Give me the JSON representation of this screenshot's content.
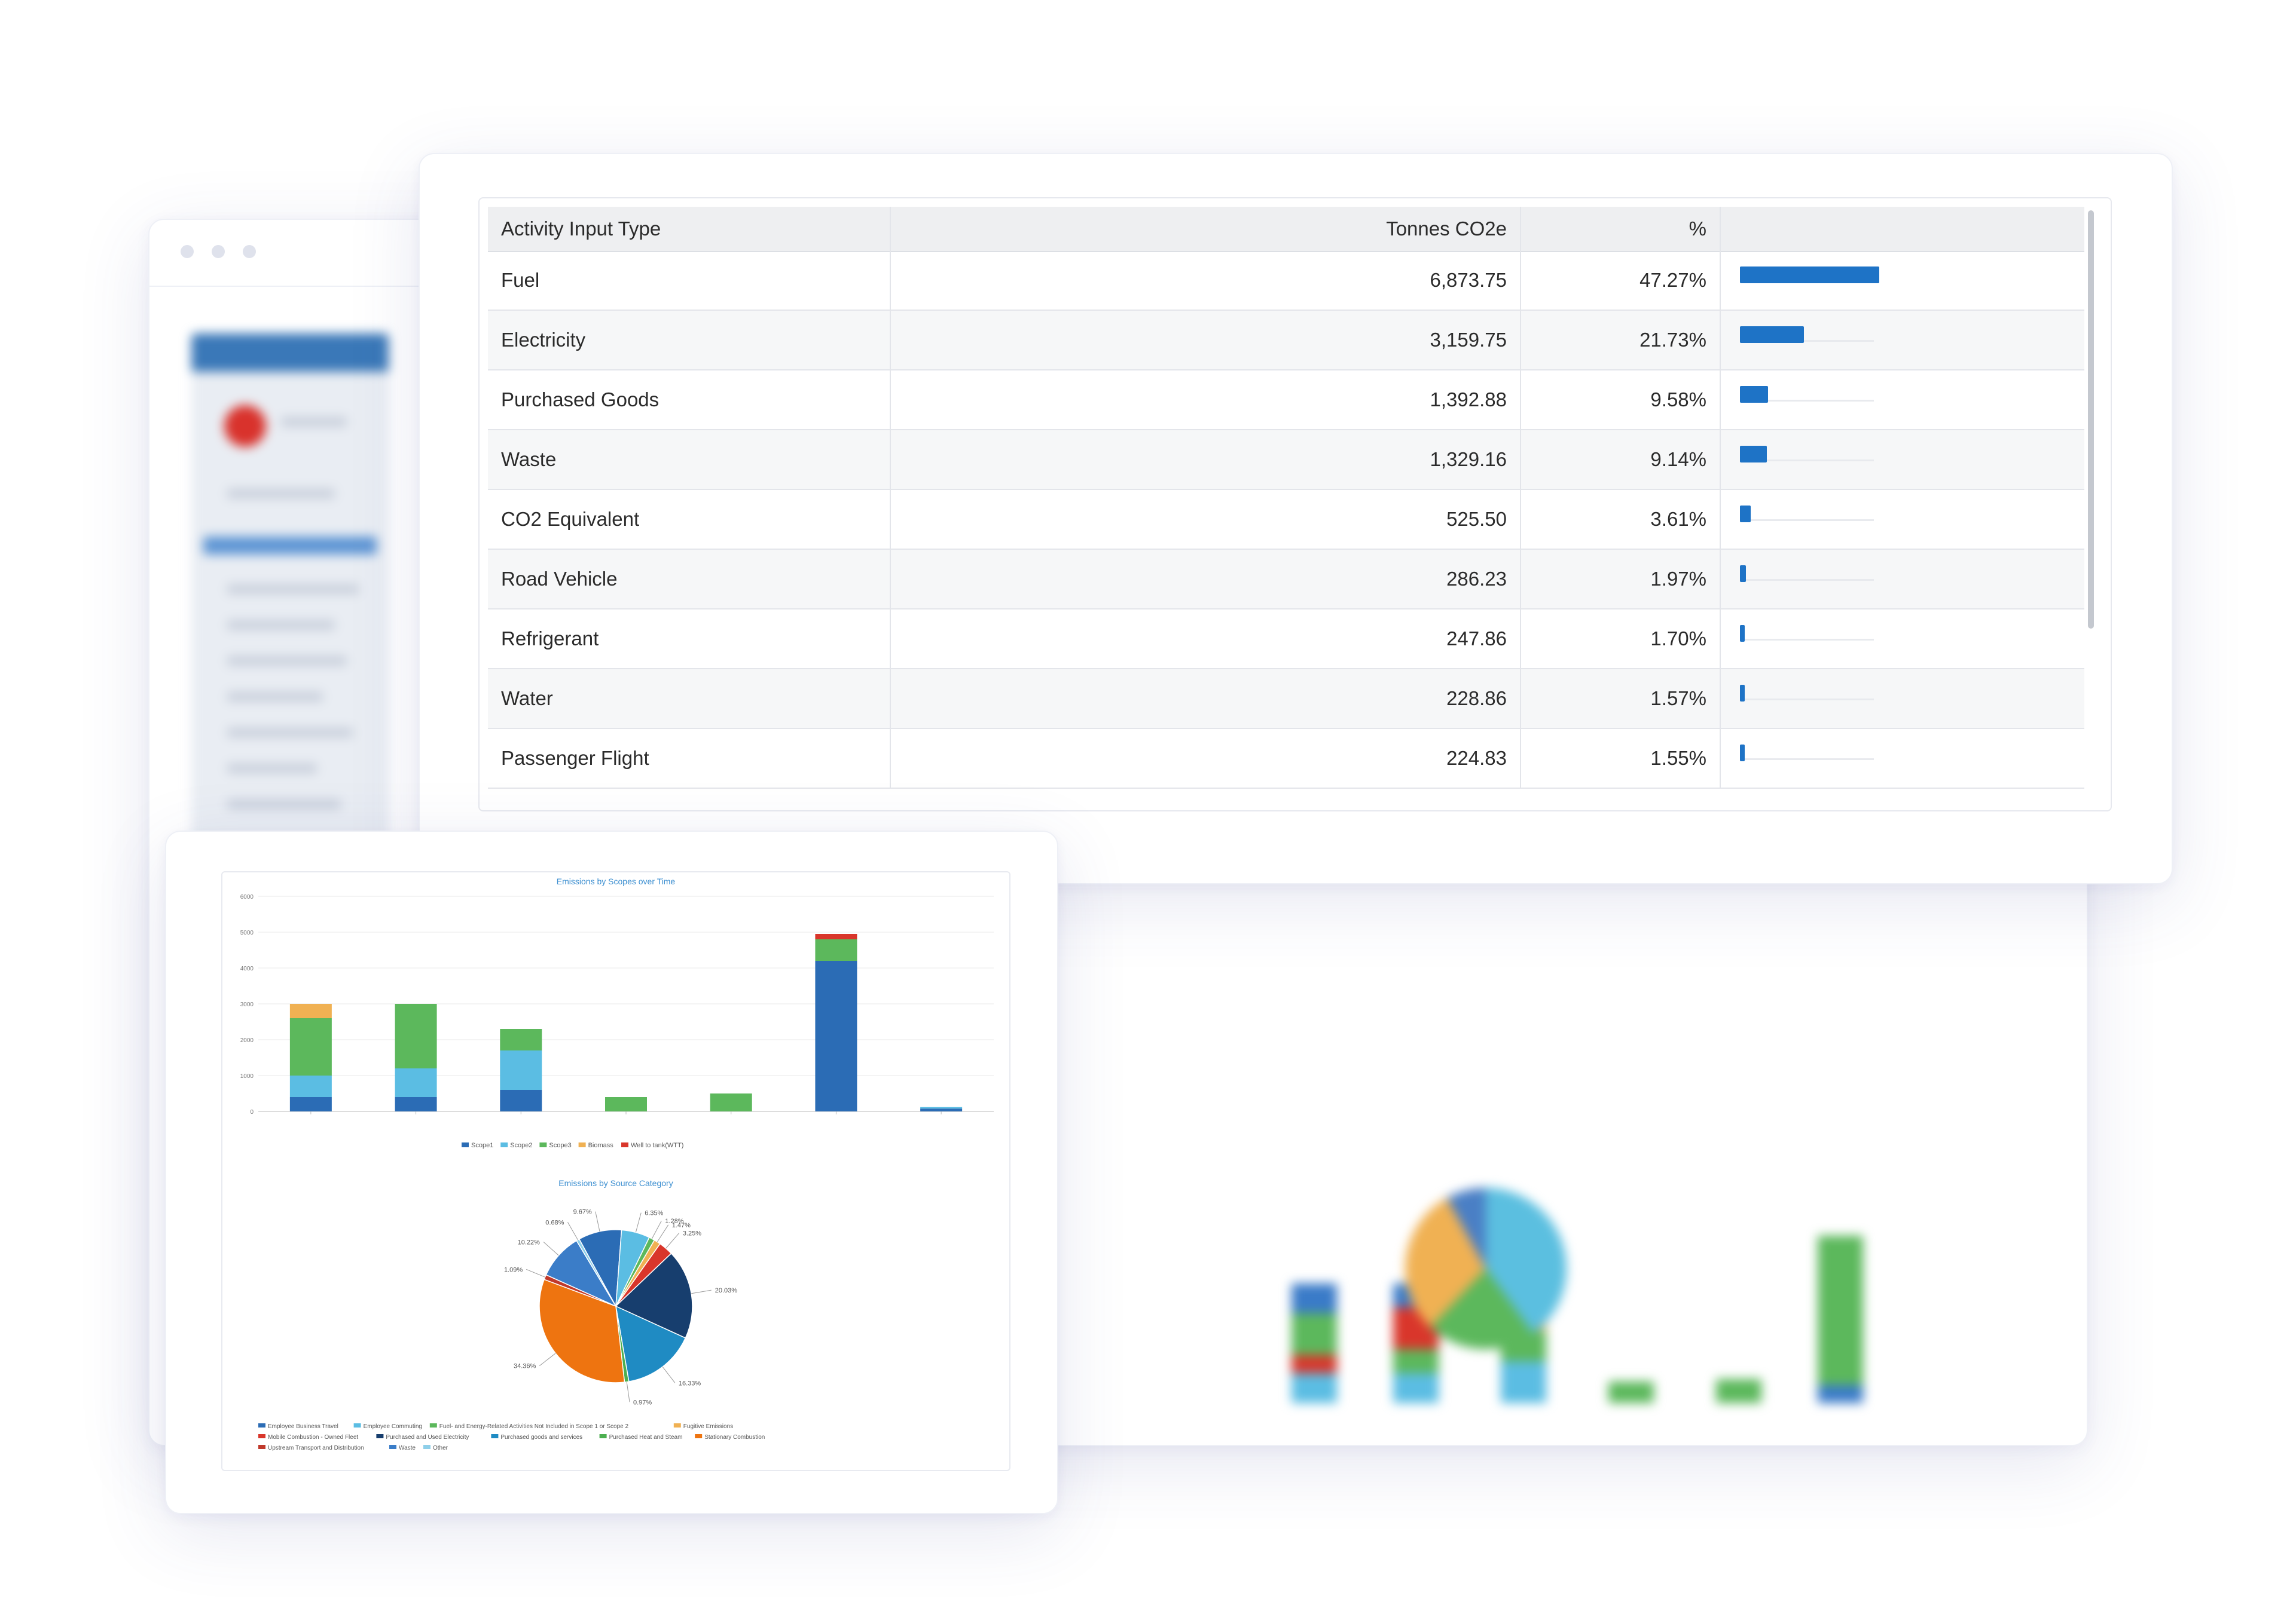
{
  "table": {
    "headers": {
      "type": "Activity Input Type",
      "tonnes": "Tonnes CO2e",
      "percent": "%"
    },
    "rows": [
      {
        "type": "Fuel",
        "tonnes": "6,873.75",
        "percent": "47.27%",
        "share": 0.4727
      },
      {
        "type": "Electricity",
        "tonnes": "3,159.75",
        "percent": "21.73%",
        "share": 0.2173
      },
      {
        "type": "Purchased Goods",
        "tonnes": "1,392.88",
        "percent": "9.58%",
        "share": 0.0958
      },
      {
        "type": "Waste",
        "tonnes": "1,329.16",
        "percent": "9.14%",
        "share": 0.0914
      },
      {
        "type": "CO2 Equivalent",
        "tonnes": "525.50",
        "percent": "3.61%",
        "share": 0.0361
      },
      {
        "type": "Road Vehicle",
        "tonnes": "286.23",
        "percent": "1.97%",
        "share": 0.0197
      },
      {
        "type": "Refrigerant",
        "tonnes": "247.86",
        "percent": "1.70%",
        "share": 0.017
      },
      {
        "type": "Water",
        "tonnes": "228.86",
        "percent": "1.57%",
        "share": 0.0157
      },
      {
        "type": "Passenger Flight",
        "tonnes": "224.83",
        "percent": "1.55%",
        "share": 0.0155
      }
    ],
    "bar_color": "#1e73c6"
  },
  "chart_data": [
    {
      "type": "bar",
      "stacked": true,
      "title": "Emissions by Scopes over Time",
      "categories": [
        "",
        "",
        "",
        "",
        "",
        "",
        ""
      ],
      "ylim": [
        0,
        6000
      ],
      "yticks": [
        "0",
        "1000",
        "2000",
        "3000",
        "4000",
        "5000",
        "6000"
      ],
      "series": [
        {
          "name": "Scope1",
          "color": "#2b6cb5",
          "values": [
            400,
            400,
            600,
            0,
            0,
            4200,
            80
          ]
        },
        {
          "name": "Scope2",
          "color": "#5bbde3",
          "values": [
            600,
            800,
            1100,
            0,
            0,
            0,
            40
          ]
        },
        {
          "name": "Scope3",
          "color": "#5cb85c",
          "values": [
            1600,
            1800,
            600,
            400,
            500,
            600,
            0
          ]
        },
        {
          "name": "Biomass",
          "color": "#f0b153",
          "values": [
            400,
            0,
            0,
            0,
            0,
            0,
            0
          ]
        },
        {
          "name": "Well to tank(WTT)",
          "color": "#d9362b",
          "values": [
            0,
            0,
            0,
            0,
            0,
            150,
            0
          ]
        }
      ]
    },
    {
      "type": "pie",
      "title": "Emissions by Source Category",
      "slice_labels": [
        "9.67%",
        "6.35%",
        "1.28%",
        "1.47%",
        "3.25%",
        "20.03%",
        "16.33%",
        "0.97%",
        "34.36%",
        "1.09%",
        "10.22%",
        "0.68%"
      ],
      "series": [
        {
          "name": "Employee Business Travel",
          "color": "#2b6cb5",
          "value": 9.67
        },
        {
          "name": "Employee Commuting",
          "color": "#5bbde3",
          "value": 6.35
        },
        {
          "name": "Fuel- and Energy-Related Activities Not Included in Scope 1 or Scope 2",
          "color": "#5cb85c",
          "value": 1.28
        },
        {
          "name": "Fugitive Emissions",
          "color": "#f0b153",
          "value": 1.47
        },
        {
          "name": "Mobile Combustion - Owned Fleet",
          "color": "#d9362b",
          "value": 3.25
        },
        {
          "name": "Purchased and Used Electricity",
          "color": "#173e6e",
          "value": 20.03
        },
        {
          "name": "Purchased goods and services",
          "color": "#1f8bc3",
          "value": 16.33
        },
        {
          "name": "Purchased Heat and Steam",
          "color": "#4caf50",
          "value": 0.97
        },
        {
          "name": "Stationary Combustion",
          "color": "#ee7410",
          "value": 34.36
        },
        {
          "name": "Upstream Transport and Distribution",
          "color": "#c0392b",
          "value": 1.09
        },
        {
          "name": "Waste",
          "color": "#3b7dc8",
          "value": 10.22
        },
        {
          "name": "Other",
          "color": "#8ecfe9",
          "value": 0.68
        }
      ]
    }
  ]
}
